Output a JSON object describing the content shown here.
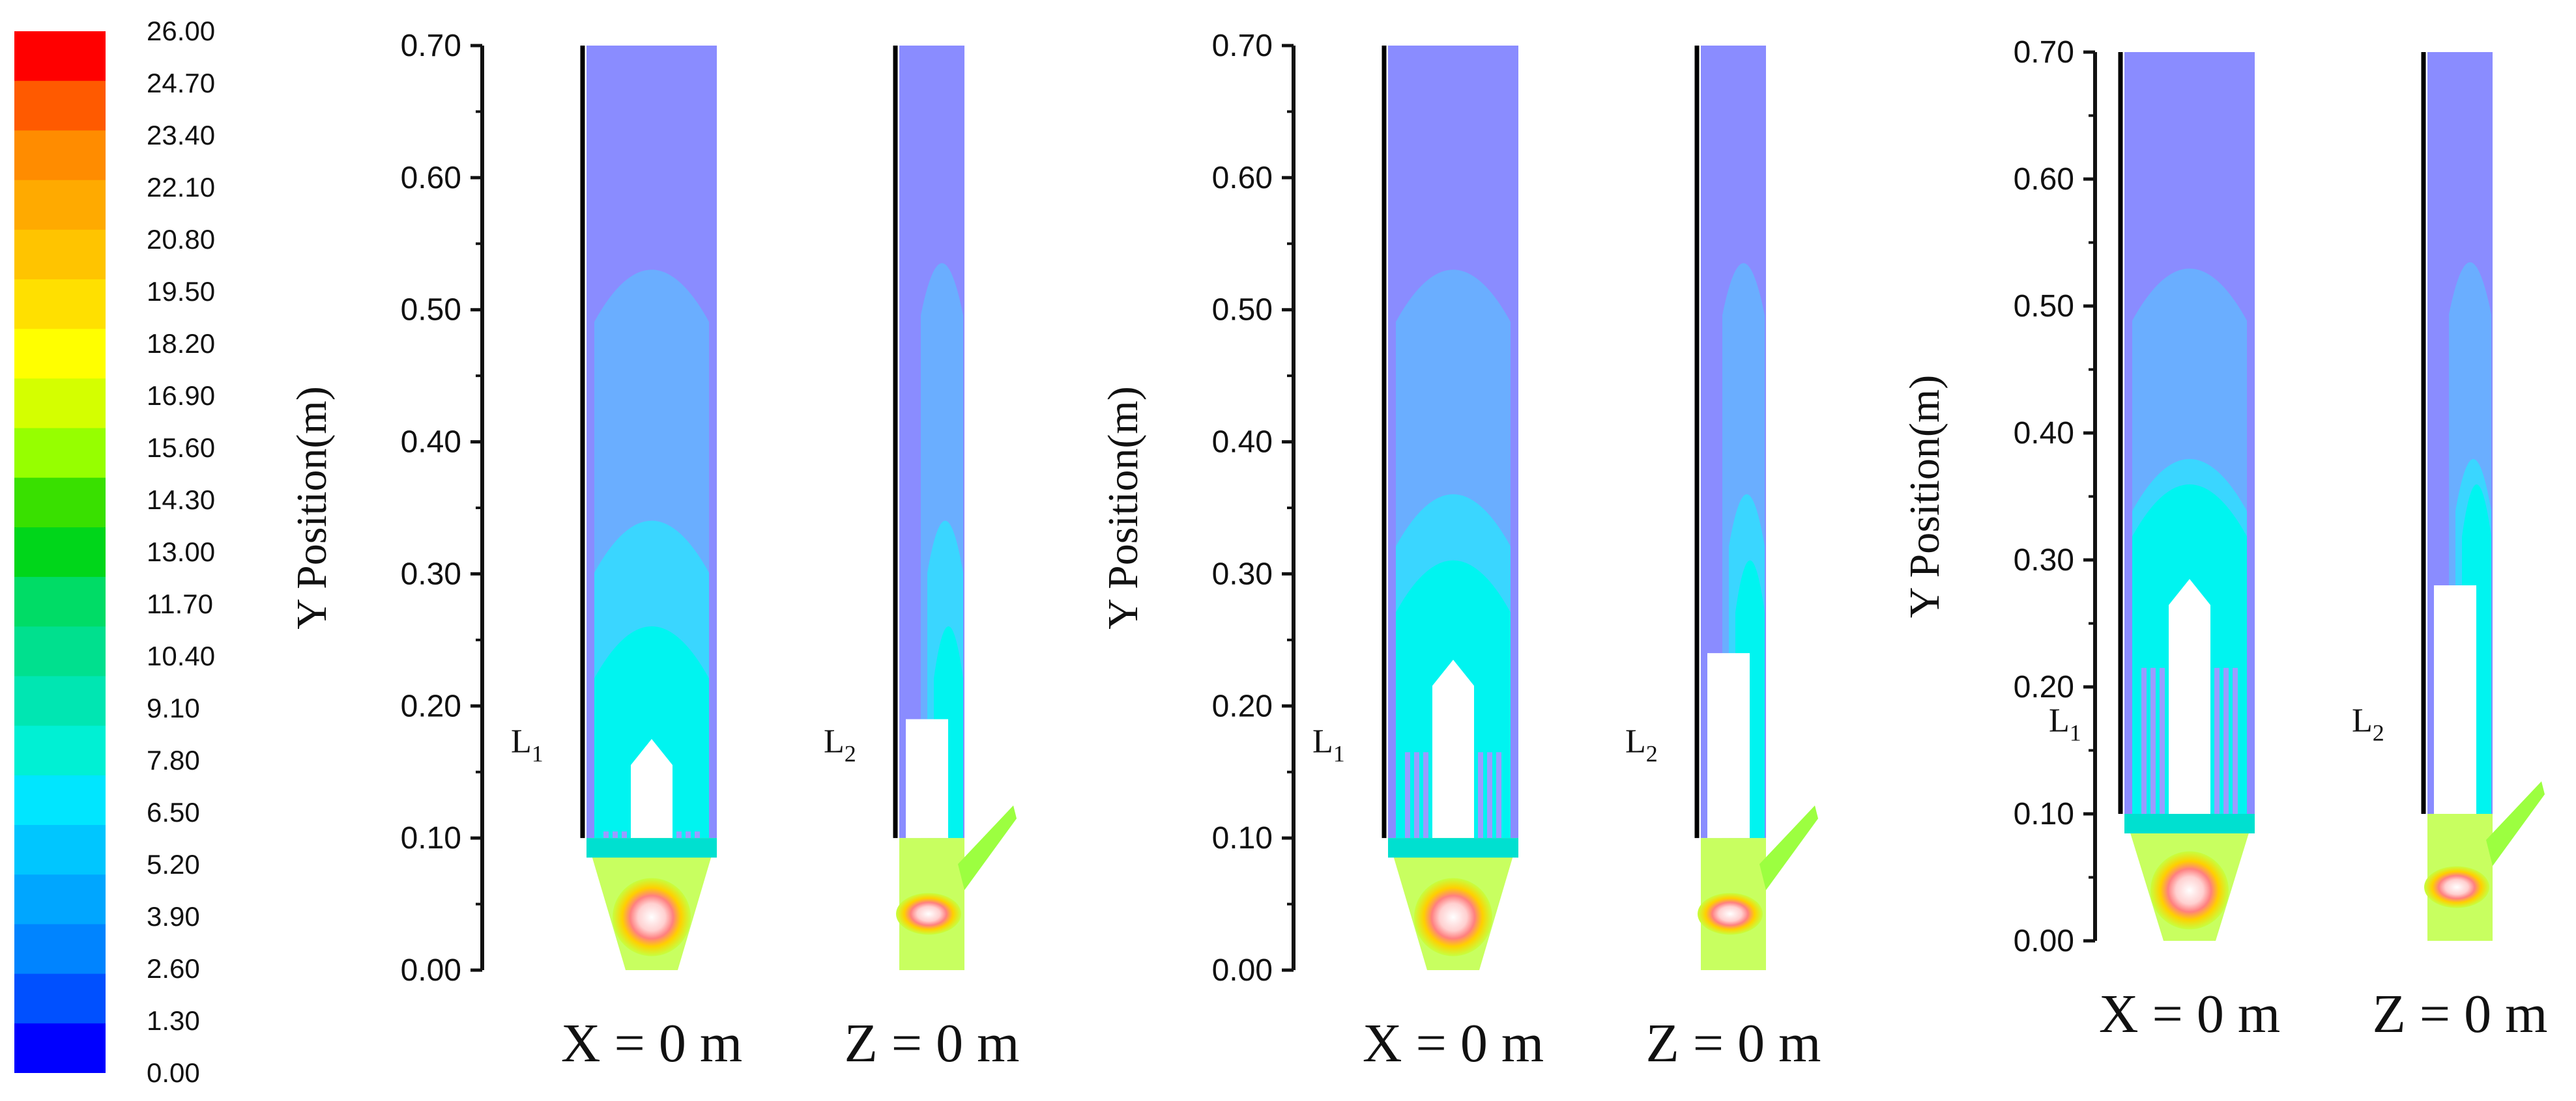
{
  "legend": {
    "values": [
      "26.00",
      "24.70",
      "23.40",
      "22.10",
      "20.80",
      "19.50",
      "18.20",
      "16.90",
      "15.60",
      "14.30",
      "13.00",
      "11.70",
      "10.40",
      "9.10",
      "7.80",
      "6.50",
      "5.20",
      "3.90",
      "2.60",
      "1.30",
      "0.00"
    ],
    "colors": [
      "#ff0000",
      "#ff5a00",
      "#ff8c00",
      "#ffaa00",
      "#ffc400",
      "#ffe000",
      "#ffff00",
      "#d4ff00",
      "#96ff00",
      "#39e000",
      "#00d61a",
      "#00dc66",
      "#00e08e",
      "#00e6b2",
      "#00f0d4",
      "#00e6ff",
      "#00c6ff",
      "#00a6ff",
      "#0084ff",
      "#0050ff",
      "#0000ff"
    ]
  },
  "panels": [
    {
      "y_axis_title": "Y Position(m)",
      "y_ticks": [
        "0.70",
        "0.60",
        "0.50",
        "0.40",
        "0.30",
        "0.20",
        "0.10",
        "0.00"
      ],
      "views": [
        {
          "plane_label": "X = 0 m",
          "line_label": "L",
          "line_sub": "1"
        },
        {
          "plane_label": "Z = 0 m",
          "line_label": "L",
          "line_sub": "2"
        }
      ]
    },
    {
      "y_axis_title": "Y Position(m)",
      "y_ticks": [
        "0.70",
        "0.60",
        "0.50",
        "0.40",
        "0.30",
        "0.20",
        "0.10",
        "0.00"
      ],
      "views": [
        {
          "plane_label": "X = 0 m",
          "line_label": "L",
          "line_sub": "1"
        },
        {
          "plane_label": "Z = 0 m",
          "line_label": "L",
          "line_sub": "2"
        }
      ]
    },
    {
      "y_axis_title": "Y Position(m)",
      "y_ticks": [
        "0.70",
        "0.60",
        "0.50",
        "0.40",
        "0.30",
        "0.20",
        "0.10",
        "0.00"
      ],
      "views": [
        {
          "plane_label": "X = 0 m",
          "line_label": "L",
          "line_sub": "1"
        },
        {
          "plane_label": "Z = 0 m",
          "line_label": "L",
          "line_sub": "2"
        }
      ]
    }
  ]
}
